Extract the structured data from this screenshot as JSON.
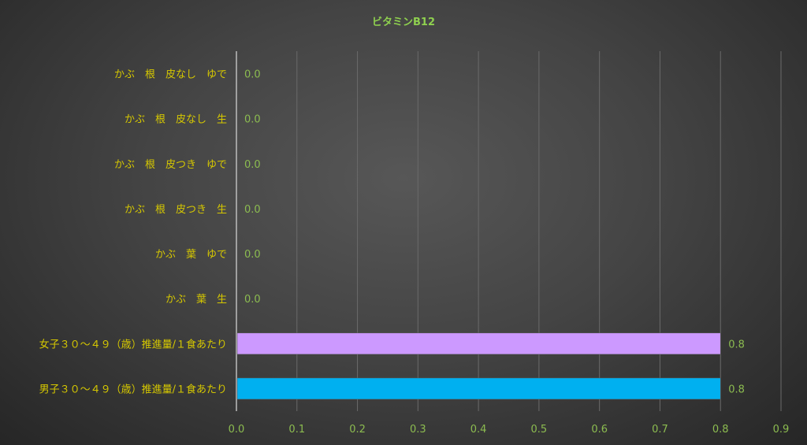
{
  "chart_data": {
    "type": "bar",
    "orientation": "horizontal",
    "title": "ビタミンB12",
    "categories": [
      "かぶ　根　皮なし　ゆで",
      "かぶ　根　皮なし　生",
      "かぶ　根　皮つき　ゆで",
      "かぶ　根　皮つき　生",
      "かぶ　葉　ゆで",
      "かぶ　葉　生",
      "女子３０～４９（歳）推進量/１食あたり",
      "男子３０～４９（歳）推進量/１食あたり"
    ],
    "values": [
      0.0,
      0.0,
      0.0,
      0.0,
      0.0,
      0.0,
      0.8,
      0.8
    ],
    "data_labels": [
      "0.0",
      "0.0",
      "0.0",
      "0.0",
      "0.0",
      "0.0",
      "0.8",
      "0.8"
    ],
    "bar_colors": [
      "#4472c4",
      "#4472c4",
      "#4472c4",
      "#4472c4",
      "#4472c4",
      "#4472c4",
      "#cc99ff",
      "#00b0f0"
    ],
    "xlim": [
      0,
      0.9
    ],
    "x_ticks": [
      "0.0",
      "0.1",
      "0.2",
      "0.3",
      "0.4",
      "0.5",
      "0.6",
      "0.7",
      "0.8",
      "0.9"
    ],
    "grid": true,
    "legend": "none"
  }
}
